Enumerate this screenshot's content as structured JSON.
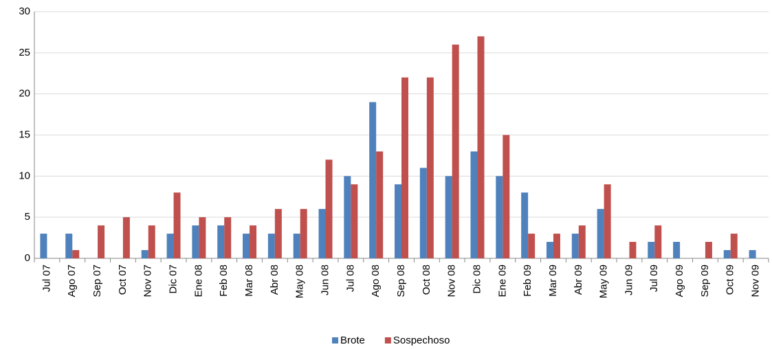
{
  "chart_data": {
    "type": "bar",
    "categories": [
      "Jul 07",
      "Ago 07",
      "Sep 07",
      "Oct 07",
      "Nov 07",
      "Dic 07",
      "Ene 08",
      "Feb 08",
      "Mar 08",
      "Abr 08",
      "May 08",
      "Jun 08",
      "Jul 08",
      "Ago 08",
      "Sep 08",
      "Oct 08",
      "Nov 08",
      "Dic 08",
      "Ene 09",
      "Feb 09",
      "Mar 09",
      "Abr 09",
      "May 09",
      "Jun 09",
      "Jul 09",
      "Ago 09",
      "Sep 09",
      "Oct 09",
      "Nov 09"
    ],
    "series": [
      {
        "name": "Brote",
        "color": "#4f81bd",
        "values": [
          3,
          3,
          0,
          0,
          1,
          3,
          4,
          4,
          3,
          3,
          3,
          6,
          10,
          19,
          9,
          11,
          10,
          13,
          10,
          8,
          2,
          3,
          6,
          0,
          2,
          2,
          0,
          1,
          1
        ]
      },
      {
        "name": "Sospechoso",
        "color": "#c0504d",
        "values": [
          0,
          1,
          4,
          5,
          4,
          8,
          5,
          5,
          4,
          6,
          6,
          12,
          9,
          13,
          22,
          22,
          26,
          27,
          15,
          3,
          3,
          4,
          9,
          2,
          4,
          0,
          2,
          3,
          0
        ]
      }
    ],
    "ylim": [
      0,
      30
    ],
    "yticks": [
      0,
      5,
      10,
      15,
      20,
      25,
      30
    ],
    "grid": true,
    "legend": "bottom"
  }
}
